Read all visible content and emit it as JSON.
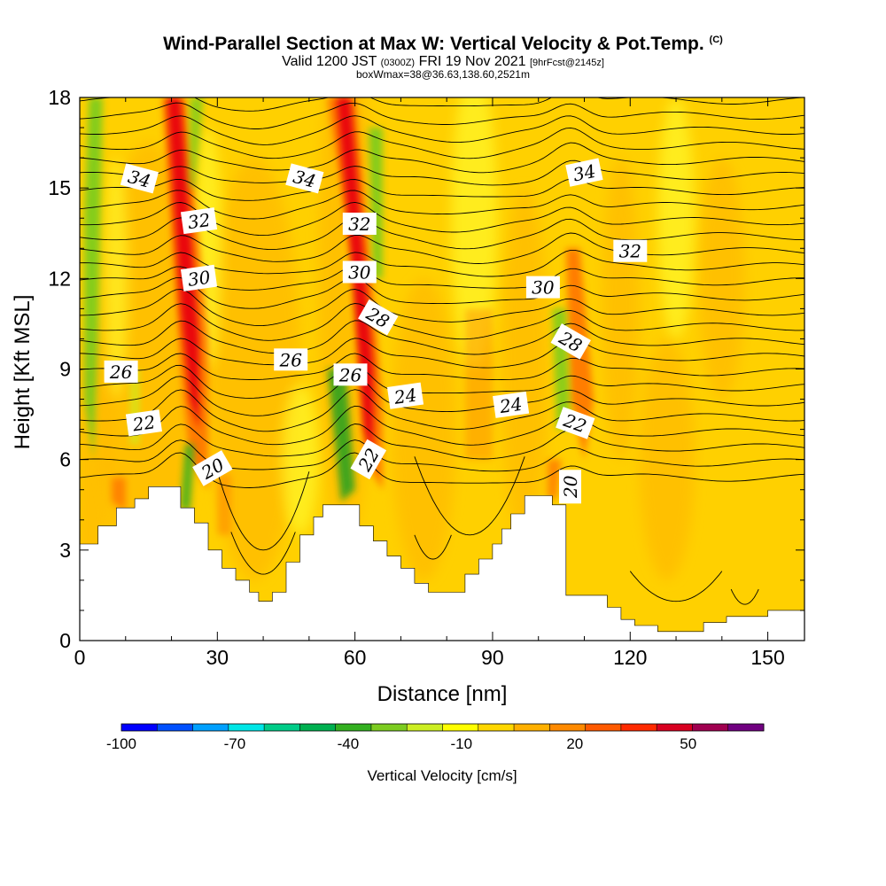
{
  "title": {
    "main": "Wind-Parallel Section at Max W: Vertical Velocity & Pot.Temp.",
    "copyright": "(C)",
    "valid_prefix": "Valid 1200 JST",
    "valid_utc": "(0300Z)",
    "valid_date": "FRI 19 Nov 2021",
    "forecast": "[9hrFcst@2145z]",
    "box_info": "boxWmax=38@36.63,138.60,2521m"
  },
  "chart_data": {
    "type": "heatmap",
    "xlabel": "Distance [nm]",
    "ylabel": "Height [Kft MSL]",
    "xlim": [
      0,
      158
    ],
    "ylim": [
      0,
      18
    ],
    "x_ticks": [
      "0",
      "30",
      "60",
      "90",
      "120",
      "150"
    ],
    "y_ticks": [
      "0",
      "3",
      "6",
      "9",
      "12",
      "15",
      "18"
    ],
    "x_tick_values": [
      0,
      30,
      60,
      90,
      120,
      150
    ],
    "y_tick_values": [
      0,
      3,
      6,
      9,
      12,
      15,
      18
    ],
    "colorbar": {
      "label": "Vertical Velocity [cm/s]",
      "range": [
        -100,
        70
      ],
      "tick_labels": [
        "-100",
        "-70",
        "-40",
        "-10",
        "20",
        "50"
      ],
      "tick_values": [
        -100,
        -70,
        -40,
        -10,
        20,
        50
      ],
      "colors": [
        "#0000ff",
        "#0050ff",
        "#00a0ff",
        "#00e6e6",
        "#00cc88",
        "#00b050",
        "#33b020",
        "#7ccc20",
        "#ccee22",
        "#ffff00",
        "#ffd700",
        "#ffb000",
        "#ff8a00",
        "#ff5a00",
        "#ff2a00",
        "#d80020",
        "#a00050",
        "#700080"
      ]
    },
    "contour_field": "Potential temperature (C)",
    "contour_labels": [
      {
        "text": "34",
        "x": 13,
        "y": 15.3,
        "angle": 15
      },
      {
        "text": "34",
        "x": 49,
        "y": 15.3,
        "angle": 15
      },
      {
        "text": "34",
        "x": 110,
        "y": 15.5,
        "angle": -12
      },
      {
        "text": "32",
        "x": 26,
        "y": 13.9,
        "angle": -8
      },
      {
        "text": "32",
        "x": 61,
        "y": 13.8,
        "angle": 0
      },
      {
        "text": "32",
        "x": 120,
        "y": 12.9,
        "angle": 0
      },
      {
        "text": "30",
        "x": 26,
        "y": 12.0,
        "angle": -8
      },
      {
        "text": "30",
        "x": 61,
        "y": 12.2,
        "angle": 0
      },
      {
        "text": "30",
        "x": 101,
        "y": 11.7,
        "angle": 0
      },
      {
        "text": "28",
        "x": 65,
        "y": 10.7,
        "angle": 30
      },
      {
        "text": "28",
        "x": 107,
        "y": 9.9,
        "angle": 30
      },
      {
        "text": "26",
        "x": 9,
        "y": 8.9,
        "angle": 0
      },
      {
        "text": "26",
        "x": 46,
        "y": 9.3,
        "angle": 0
      },
      {
        "text": "26",
        "x": 59,
        "y": 8.8,
        "angle": 0
      },
      {
        "text": "24",
        "x": 71,
        "y": 8.1,
        "angle": -8
      },
      {
        "text": "24",
        "x": 94,
        "y": 7.8,
        "angle": -8
      },
      {
        "text": "22",
        "x": 14,
        "y": 7.2,
        "angle": -8
      },
      {
        "text": "22",
        "x": 63,
        "y": 6.0,
        "angle": -60
      },
      {
        "text": "22",
        "x": 108,
        "y": 7.2,
        "angle": 20
      },
      {
        "text": "20",
        "x": 29,
        "y": 5.7,
        "angle": -30
      },
      {
        "text": "20",
        "x": 107,
        "y": 5.1,
        "angle": -90
      }
    ]
  }
}
